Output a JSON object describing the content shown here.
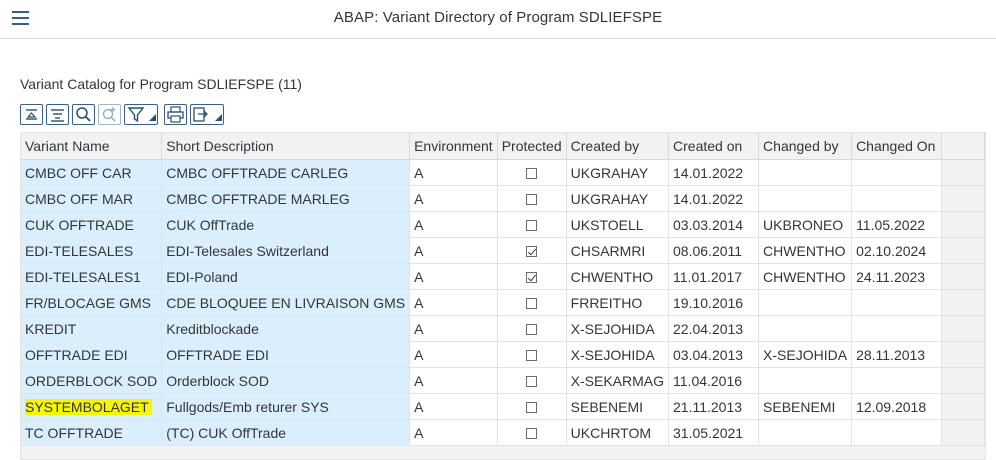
{
  "header": {
    "title": "ABAP: Variant Directory of Program SDLIEFSPE",
    "menu_icon": "hamburger-menu-icon"
  },
  "catalog": {
    "title": "Variant Catalog for Program SDLIEFSPE (11)"
  },
  "toolbar": {
    "buttons": [
      "align-top-icon",
      "filter-list-icon",
      "find-icon",
      "find-next-icon",
      "filter-icon",
      "print-icon",
      "export-icon"
    ]
  },
  "table": {
    "columns": [
      "Variant Name",
      "Short Description",
      "Environment",
      "Protected",
      "Created by",
      "Created on",
      "Changed by",
      "Changed On"
    ],
    "rows": [
      {
        "variant": "CMBC OFF CAR",
        "desc": "CMBC OFFTRADE CARLEG",
        "env": "A",
        "protected": false,
        "created_by": "UKGRAHAY",
        "created_on": "14.01.2022",
        "changed_by": "",
        "changed_on": ""
      },
      {
        "variant": "CMBC OFF MAR",
        "desc": "CMBC OFFTRADE MARLEG",
        "env": "A",
        "protected": false,
        "created_by": "UKGRAHAY",
        "created_on": "14.01.2022",
        "changed_by": "",
        "changed_on": ""
      },
      {
        "variant": "CUK OFFTRADE",
        "desc": "CUK OffTrade",
        "env": "A",
        "protected": false,
        "created_by": "UKSTOELL",
        "created_on": "03.03.2014",
        "changed_by": "UKBRONEO",
        "changed_on": "11.05.2022"
      },
      {
        "variant": "EDI-TELESALES",
        "desc": "EDI-Telesales Switzerland",
        "env": "A",
        "protected": true,
        "created_by": "CHSARMRI",
        "created_on": "08.06.2011",
        "changed_by": "CHWENTHO",
        "changed_on": "02.10.2024"
      },
      {
        "variant": "EDI-TELESALES1",
        "desc": "EDI-Poland",
        "env": "A",
        "protected": true,
        "created_by": "CHWENTHO",
        "created_on": "11.01.2017",
        "changed_by": "CHWENTHO",
        "changed_on": "24.11.2023"
      },
      {
        "variant": "FR/BLOCAGE GMS",
        "desc": "CDE BLOQUEE EN LIVRAISON GMS",
        "env": "A",
        "protected": false,
        "created_by": "FRREITHO",
        "created_on": "19.10.2016",
        "changed_by": "",
        "changed_on": ""
      },
      {
        "variant": "KREDIT",
        "desc": "Kreditblockade",
        "env": "A",
        "protected": false,
        "created_by": "X-SEJOHIDA",
        "created_on": "22.04.2013",
        "changed_by": "",
        "changed_on": ""
      },
      {
        "variant": "OFFTRADE EDI",
        "desc": "OFFTRADE EDI",
        "env": "A",
        "protected": false,
        "created_by": "X-SEJOHIDA",
        "created_on": "03.04.2013",
        "changed_by": "X-SEJOHIDA",
        "changed_on": "28.11.2013"
      },
      {
        "variant": "ORDERBLOCK SOD",
        "desc": "Orderblock SOD",
        "env": "A",
        "protected": false,
        "created_by": "X-SEKARMAG",
        "created_on": "11.04.2016",
        "changed_by": "",
        "changed_on": ""
      },
      {
        "variant": "SYSTEMBOLAGET",
        "desc": "Fullgods/Emb returer SYS",
        "env": "A",
        "protected": false,
        "created_by": "SEBENEMI",
        "created_on": "21.11.2013",
        "changed_by": "SEBENEMI",
        "changed_on": "12.09.2018",
        "highlighted": true
      },
      {
        "variant": "TC OFFTRADE",
        "desc": "(TC) CUK OffTrade",
        "env": "A",
        "protected": false,
        "created_by": "UKCHRTOM",
        "created_on": "31.05.2021",
        "changed_by": "",
        "changed_on": ""
      }
    ]
  },
  "colors": {
    "key_cell": "#dbeefc",
    "highlight": "#f5f50a",
    "accent": "#346187"
  }
}
